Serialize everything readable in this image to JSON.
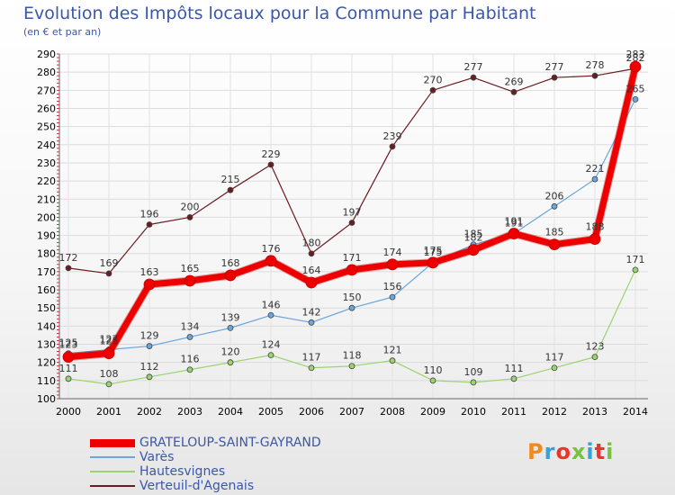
{
  "title": "Evolution des Impôts locaux pour la Commune par Habitant",
  "subtitle": "(en € et par an)",
  "logo": {
    "text": "Proxiti",
    "colors": [
      "#f08a1d",
      "#3aa0d8",
      "#e8362f",
      "#7ac043",
      "#3aa0d8",
      "#e8362f",
      "#7ac043"
    ]
  },
  "chart_data": {
    "type": "line",
    "x": [
      "2000",
      "2001",
      "2002",
      "2003",
      "2004",
      "2005",
      "2006",
      "2007",
      "2008",
      "2009",
      "2010",
      "2011",
      "2012",
      "2013",
      "2014"
    ],
    "ylim": [
      100,
      290
    ],
    "yticks": [
      100,
      110,
      120,
      130,
      140,
      150,
      160,
      170,
      180,
      190,
      200,
      210,
      220,
      230,
      240,
      250,
      260,
      270,
      280,
      290
    ],
    "grid": true,
    "legend_position": "bottom-left",
    "series": [
      {
        "name": "Verteuil-d'Agenais",
        "color": "#6b1c22",
        "width": 1.2,
        "marker": 3,
        "values": [
          172,
          169,
          196,
          200,
          215,
          229,
          180,
          197,
          239,
          270,
          277,
          269,
          277,
          278,
          282
        ]
      },
      {
        "name": "Hautesvignes",
        "color": "#9bd46e",
        "width": 1.2,
        "marker": 3,
        "values": [
          111,
          108,
          112,
          116,
          120,
          124,
          117,
          118,
          121,
          110,
          109,
          111,
          117,
          123,
          171
        ]
      },
      {
        "name": "Varès",
        "color": "#6aa6dc",
        "width": 1.2,
        "marker": 3,
        "values": [
          125,
          127,
          129,
          134,
          139,
          146,
          142,
          150,
          156,
          175,
          185,
          191,
          206,
          221,
          265
        ]
      },
      {
        "name": "GRATELOUP-SAINT-GAYRAND",
        "color": "#ee0000",
        "width": 7,
        "marker": 6,
        "values": [
          123,
          125,
          163,
          165,
          168,
          176,
          164,
          171,
          174,
          175,
          182,
          191,
          185,
          188,
          283
        ]
      }
    ]
  }
}
